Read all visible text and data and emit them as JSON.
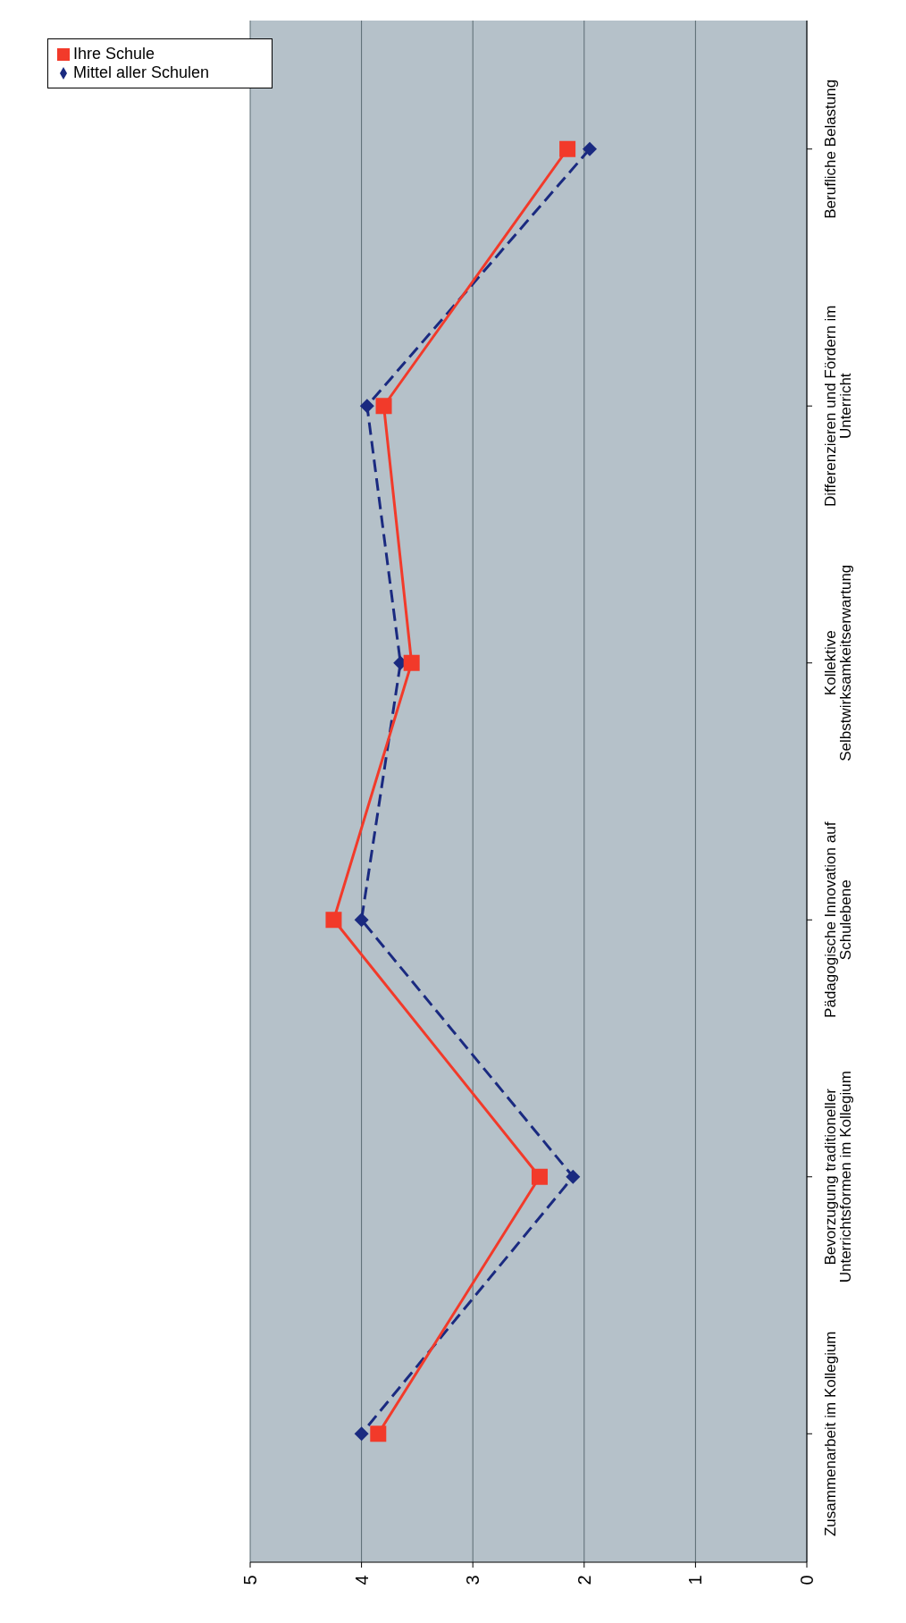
{
  "chart_data": {
    "type": "line",
    "orientation": "horizontal",
    "categories": [
      "Berufliche Belastung",
      "Differenzieren und Fördern im Unterricht",
      "Kollektive Selbstwirksamkeitserwartung",
      "Pädagogische Innovation auf Schulebene",
      "Bevorzugung traditioneller Unterrichtsformen im Kollegium",
      "Zusammenarbeit im Kollegium"
    ],
    "series": [
      {
        "name": "Mittel aller Schulen",
        "color": "#1a2a80",
        "values": [
          1.95,
          3.95,
          3.65,
          4.0,
          2.1,
          4.0
        ],
        "marker": "diamond",
        "line_style": "dashed"
      },
      {
        "name": "Ihre Schule",
        "color": "#f23a2a",
        "values": [
          2.15,
          3.8,
          3.55,
          4.25,
          2.4,
          3.85
        ],
        "marker": "square",
        "line_style": "solid"
      }
    ],
    "xlim": [
      5,
      0
    ],
    "xticks": [
      0,
      1,
      2,
      3,
      4,
      5
    ],
    "grid": "x",
    "legend": "top left"
  }
}
